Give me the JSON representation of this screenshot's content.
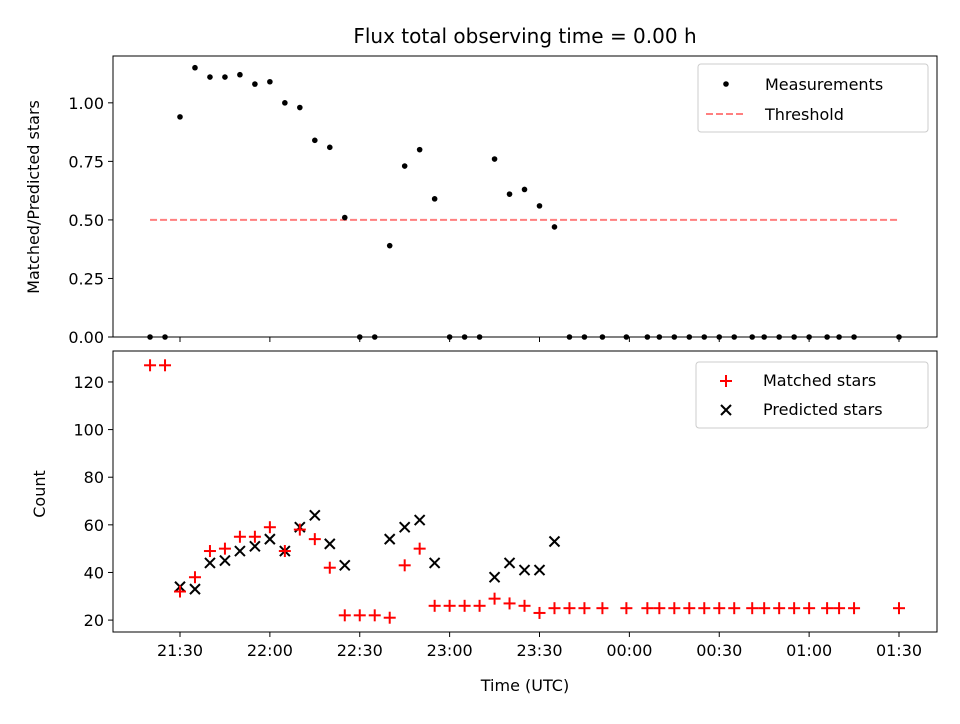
{
  "title": "Flux total observing time = 0.00 h",
  "colors": {
    "measurement": "#000000",
    "threshold": "#ff7f7f",
    "matched": "#ff0000",
    "predicted": "#000000"
  },
  "top": {
    "ylabel": "Matched/Predicted stars",
    "ylim": [
      0,
      1.2
    ],
    "yticks": [
      "0.00",
      "0.25",
      "0.50",
      "0.75",
      "1.00"
    ],
    "legend": {
      "measurements": "Measurements",
      "threshold": "Threshold"
    }
  },
  "bottom": {
    "ylabel": "Count",
    "xlabel": "Time (UTC)",
    "ylim": [
      15,
      133
    ],
    "yticks": [
      "20",
      "40",
      "60",
      "80",
      "100",
      "120"
    ],
    "legend": {
      "matched": "Matched stars",
      "predicted": "Predicted stars"
    }
  },
  "xticks": [
    "21:30",
    "22:00",
    "22:30",
    "23:00",
    "23:30",
    "00:00",
    "00:30",
    "01:00",
    "01:30"
  ],
  "chart_data": [
    {
      "type": "scatter",
      "title": "Flux total observing time = 0.00 h",
      "xlabel": "",
      "ylabel": "Matched/Predicted stars",
      "ylim": [
        0,
        1.2
      ],
      "legend": "top-right",
      "series": [
        {
          "name": "Measurements",
          "points": [
            [
              "21:20",
              0
            ],
            [
              "21:25",
              0
            ],
            [
              "21:30",
              0.94
            ],
            [
              "21:35",
              1.15
            ],
            [
              "21:40",
              1.11
            ],
            [
              "21:45",
              1.11
            ],
            [
              "21:50",
              1.12
            ],
            [
              "21:55",
              1.08
            ],
            [
              "22:00",
              1.09
            ],
            [
              "22:05",
              1.0
            ],
            [
              "22:10",
              0.98
            ],
            [
              "22:15",
              0.84
            ],
            [
              "22:20",
              0.81
            ],
            [
              "22:25",
              0.51
            ],
            [
              "22:30",
              0
            ],
            [
              "22:35",
              0
            ],
            [
              "22:40",
              0.39
            ],
            [
              "22:45",
              0.73
            ],
            [
              "22:50",
              0.8
            ],
            [
              "22:55",
              0.59
            ],
            [
              "23:00",
              0
            ],
            [
              "23:05",
              0
            ],
            [
              "23:10",
              0
            ],
            [
              "23:15",
              0.76
            ],
            [
              "23:20",
              0.61
            ],
            [
              "23:25",
              0.63
            ],
            [
              "23:30",
              0.56
            ],
            [
              "23:35",
              0.47
            ],
            [
              "23:40",
              0
            ],
            [
              "23:45",
              0
            ],
            [
              "23:51",
              0
            ],
            [
              "23:59",
              0
            ],
            [
              "00:06",
              0
            ],
            [
              "00:10",
              0
            ],
            [
              "00:15",
              0
            ],
            [
              "00:20",
              0
            ],
            [
              "00:25",
              0
            ],
            [
              "00:30",
              0
            ],
            [
              "00:35",
              0
            ],
            [
              "00:41",
              0
            ],
            [
              "00:45",
              0
            ],
            [
              "00:50",
              0
            ],
            [
              "00:55",
              0
            ],
            [
              "01:00",
              0
            ],
            [
              "01:06",
              0
            ],
            [
              "01:10",
              0
            ],
            [
              "01:15",
              0
            ],
            [
              "01:30",
              0
            ]
          ]
        },
        {
          "name": "Threshold",
          "x": [
            "21:20",
            "01:30"
          ],
          "y": [
            0.5,
            0.5
          ]
        }
      ]
    },
    {
      "type": "scatter",
      "xlabel": "Time (UTC)",
      "ylabel": "Count",
      "ylim": [
        15,
        133
      ],
      "legend": "top-right",
      "series": [
        {
          "name": "Matched stars",
          "points": [
            [
              "21:20",
              127
            ],
            [
              "21:25",
              127
            ],
            [
              "21:30",
              32
            ],
            [
              "21:35",
              38
            ],
            [
              "21:40",
              49
            ],
            [
              "21:45",
              50
            ],
            [
              "21:50",
              55
            ],
            [
              "21:55",
              55
            ],
            [
              "22:00",
              59
            ],
            [
              "22:05",
              49
            ],
            [
              "22:10",
              58
            ],
            [
              "22:15",
              54
            ],
            [
              "22:20",
              42
            ],
            [
              "22:25",
              22
            ],
            [
              "22:30",
              22
            ],
            [
              "22:35",
              22
            ],
            [
              "22:40",
              21
            ],
            [
              "22:45",
              43
            ],
            [
              "22:50",
              50
            ],
            [
              "22:55",
              26
            ],
            [
              "23:00",
              26
            ],
            [
              "23:05",
              26
            ],
            [
              "23:10",
              26
            ],
            [
              "23:15",
              29
            ],
            [
              "23:20",
              27
            ],
            [
              "23:25",
              26
            ],
            [
              "23:30",
              23
            ],
            [
              "23:35",
              25
            ],
            [
              "23:40",
              25
            ],
            [
              "23:45",
              25
            ],
            [
              "23:51",
              25
            ],
            [
              "23:59",
              25
            ],
            [
              "00:06",
              25
            ],
            [
              "00:10",
              25
            ],
            [
              "00:15",
              25
            ],
            [
              "00:20",
              25
            ],
            [
              "00:25",
              25
            ],
            [
              "00:30",
              25
            ],
            [
              "00:35",
              25
            ],
            [
              "00:41",
              25
            ],
            [
              "00:45",
              25
            ],
            [
              "00:50",
              25
            ],
            [
              "00:55",
              25
            ],
            [
              "01:00",
              25
            ],
            [
              "01:06",
              25
            ],
            [
              "01:10",
              25
            ],
            [
              "01:15",
              25
            ],
            [
              "01:30",
              25
            ]
          ]
        },
        {
          "name": "Predicted stars",
          "points": [
            [
              "21:30",
              34
            ],
            [
              "21:35",
              33
            ],
            [
              "21:40",
              44
            ],
            [
              "21:45",
              45
            ],
            [
              "21:50",
              49
            ],
            [
              "21:55",
              51
            ],
            [
              "22:00",
              54
            ],
            [
              "22:05",
              49
            ],
            [
              "22:10",
              59
            ],
            [
              "22:15",
              64
            ],
            [
              "22:20",
              52
            ],
            [
              "22:25",
              43
            ],
            [
              "22:40",
              54
            ],
            [
              "22:45",
              59
            ],
            [
              "22:50",
              62
            ],
            [
              "22:55",
              44
            ],
            [
              "23:15",
              38
            ],
            [
              "23:20",
              44
            ],
            [
              "23:25",
              41
            ],
            [
              "23:30",
              41
            ],
            [
              "23:35",
              53
            ]
          ]
        }
      ]
    }
  ]
}
